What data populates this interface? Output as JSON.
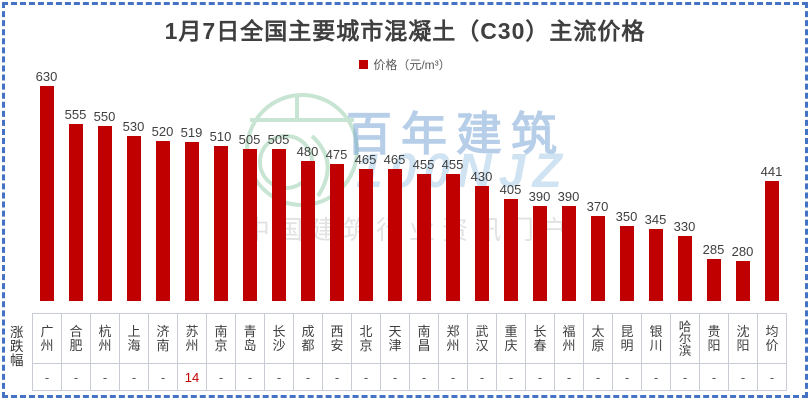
{
  "frame": {
    "border_color": "#4472C4"
  },
  "title": "1月7日全国主要城市混凝土（C30）主流价格",
  "legend": {
    "label": "价格（元/m³）",
    "marker_color": "#C00000"
  },
  "row_label": "涨跌幅",
  "watermark": {
    "brand": "百年建筑",
    "brand_sub": "100NJZ",
    "tagline": "中国建筑行业资讯门户"
  },
  "chart_data": {
    "type": "bar",
    "title": "1月7日全国主要城市混凝土（C30）主流价格",
    "series_label": "价格（元/m³）",
    "bar_color": "#C00000",
    "value_label_color": "#404040",
    "change_up_color": "#C00000",
    "ylim": [
      200,
      650
    ],
    "grid": false,
    "legend_position": "top-center",
    "categories": [
      "广州",
      "合肥",
      "杭州",
      "上海",
      "济南",
      "苏州",
      "南京",
      "青岛",
      "长沙",
      "成都",
      "西安",
      "北京",
      "天津",
      "南昌",
      "郑州",
      "武汉",
      "重庆",
      "长春",
      "福州",
      "太原",
      "昆明",
      "银川",
      "哈尔滨",
      "贵阳",
      "沈阳",
      "均价"
    ],
    "values": [
      630,
      555,
      550,
      530,
      520,
      519,
      510,
      505,
      505,
      480,
      475,
      465,
      465,
      455,
      455,
      430,
      405,
      390,
      390,
      370,
      350,
      345,
      330,
      285,
      280,
      441
    ],
    "changes": [
      "-",
      "-",
      "-",
      "-",
      "-",
      "14",
      "-",
      "-",
      "-",
      "-",
      "-",
      "-",
      "-",
      "-",
      "-",
      "-",
      "-",
      "-",
      "-",
      "-",
      "-",
      "-",
      "-",
      "-",
      "-",
      "-"
    ]
  }
}
